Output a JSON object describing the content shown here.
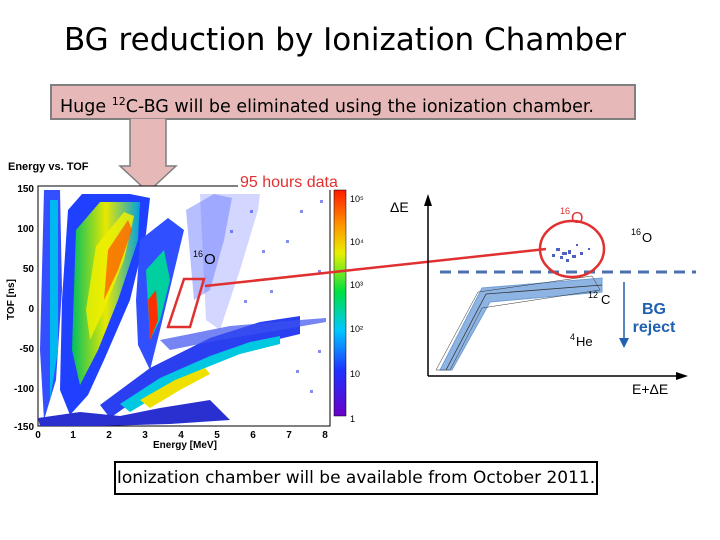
{
  "slide": {
    "title": "BG reduction by Ionization Chamber",
    "banner": {
      "pre": "Huge ",
      "sup": "12",
      "post": "C-BG will be eliminated using the ionization chamber."
    },
    "footer": "Ionization chamber will be available from October 2011."
  },
  "histogram": {
    "title": "Energy vs. TOF",
    "annotation": "95 hours data",
    "xlabel": "Energy [MeV]",
    "ylabel": "TOF [ns]",
    "xticks": [
      "0",
      "1",
      "2",
      "3",
      "4",
      "5",
      "6",
      "7",
      "8"
    ],
    "yticks": [
      "150",
      "100",
      "50",
      "0",
      "-50",
      "-100",
      "-150"
    ],
    "scale_labels": [
      "10⁵",
      "10⁴",
      "10³",
      "10²",
      "10",
      "1"
    ],
    "gate_label_mass": "16",
    "gate_label_elem": "O"
  },
  "schematic": {
    "y_axis_label": "ΔE",
    "x_axis_label": "E+ΔE",
    "o16_inside_mass": "16",
    "o16_inside_elem": "O",
    "o16_right_mass": "16",
    "o16_right_elem": "O",
    "c12_mass": "12",
    "c12_elem": "C",
    "he4_mass": "4",
    "he4_elem": "He",
    "bg_reject_line1": "BG",
    "bg_reject_line2": "reject"
  },
  "colors": {
    "banner": "#e6b9b8",
    "accent_red": "#e03030",
    "band_blue": "#8eb4e3",
    "reject_blue": "#2060b0"
  }
}
